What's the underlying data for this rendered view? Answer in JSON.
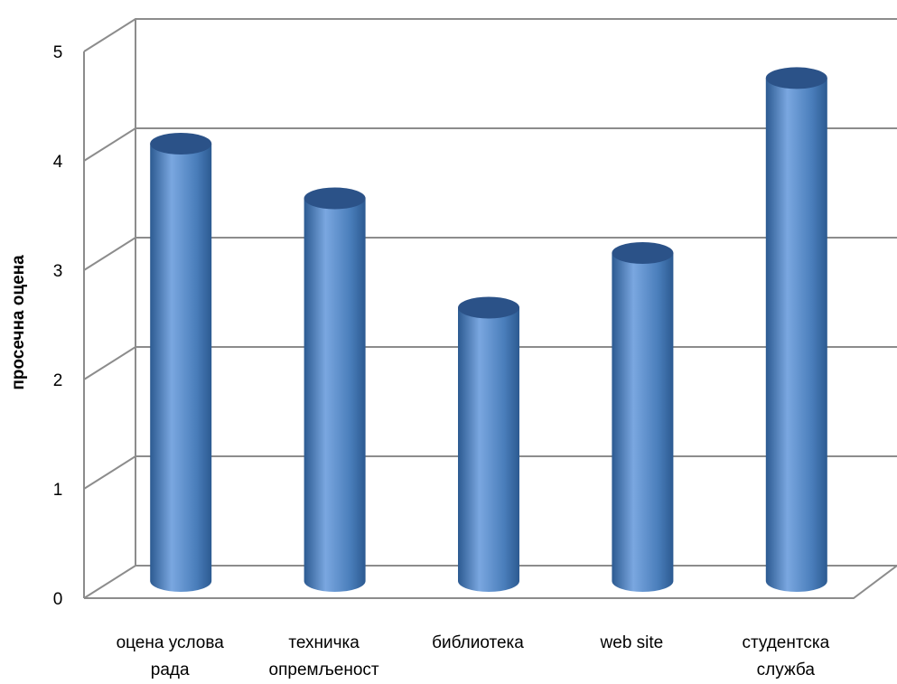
{
  "chart_data": {
    "type": "bar",
    "style": "3d-cylinder",
    "categories": [
      [
        "оцена услова",
        "рада"
      ],
      [
        "техничка",
        "опремљеност"
      ],
      [
        "библиотека"
      ],
      [
        "web site"
      ],
      [
        "студентска",
        "служба"
      ]
    ],
    "values": [
      4.0,
      3.5,
      2.5,
      3.0,
      4.6
    ],
    "title": "",
    "xlabel": "",
    "ylabel": "просечна оцена",
    "ylim": [
      0,
      5
    ],
    "yticks": [
      0,
      1,
      2,
      3,
      4,
      5
    ],
    "grid": true,
    "legend": "none",
    "colors": {
      "bar": "#4a7ebb",
      "bar_light": "#7aa7e0",
      "bar_dark": "#2c5a91",
      "bar_top": "#2b5288",
      "grid": "#8c8c8c"
    }
  }
}
